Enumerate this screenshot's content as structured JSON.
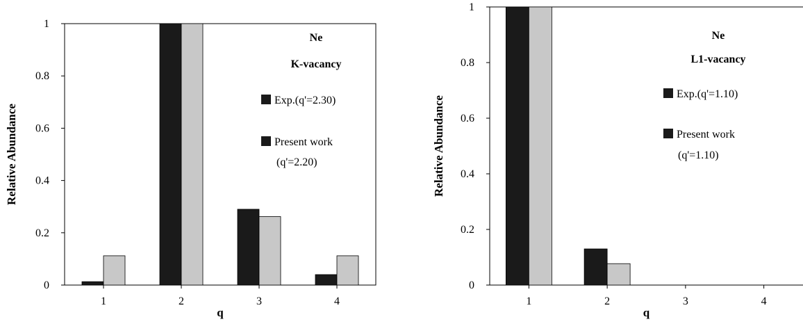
{
  "colors": {
    "exp": "#1a1a1a",
    "present": "#c8c8c8",
    "axis": "#000000",
    "background": "#ffffff"
  },
  "chart_data": [
    {
      "type": "bar",
      "title": "",
      "annotations": [
        "Ne",
        "K-vacancy"
      ],
      "xlabel": "q",
      "ylabel": "Relative Abundance",
      "categories": [
        "1",
        "2",
        "3",
        "4"
      ],
      "ylim": [
        0,
        1
      ],
      "yticks": [
        "0",
        "0.2",
        "0.4",
        "0.6",
        "0.8",
        "1"
      ],
      "grid": false,
      "legend_position": "right",
      "series": [
        {
          "name": "Exp.(q'=2.30)",
          "legend_lines": [
            "Exp.(q'=2.30)"
          ],
          "values": [
            0.013,
            1.0,
            0.29,
            0.04
          ]
        },
        {
          "name": "Present work (q'=2.20)",
          "legend_lines": [
            "Present work",
            "(q'=2.20)"
          ],
          "values": [
            0.112,
            1.0,
            0.262,
            0.112
          ]
        }
      ]
    },
    {
      "type": "bar",
      "title": "",
      "annotations": [
        "Ne",
        "L1-vacancy"
      ],
      "xlabel": "q",
      "ylabel": "Relative Abundance",
      "categories": [
        "1",
        "2",
        "3",
        "4"
      ],
      "ylim": [
        0,
        1
      ],
      "yticks": [
        "0",
        "0.2",
        "0.4",
        "0.6",
        "0.8",
        "1"
      ],
      "grid": false,
      "legend_position": "right",
      "series": [
        {
          "name": "Exp.(q'=1.10)",
          "legend_lines": [
            "Exp.(q'=1.10)"
          ],
          "values": [
            1.0,
            0.13,
            0,
            0
          ]
        },
        {
          "name": "Present work (q'=1.10)",
          "legend_lines": [
            "Present work",
            "(q'=1.10)"
          ],
          "values": [
            1.0,
            0.077,
            0,
            0
          ]
        }
      ]
    }
  ]
}
